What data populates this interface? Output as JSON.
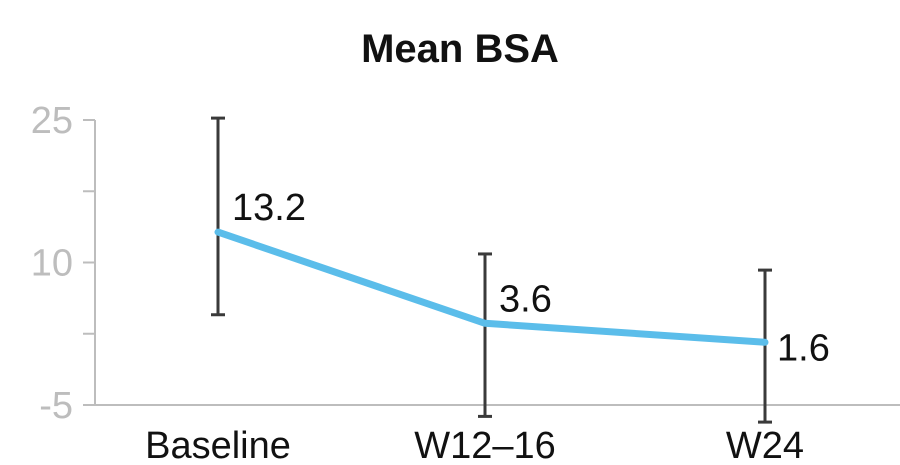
{
  "colors": {
    "series": "#5bbdea",
    "error_bar": "#3a3a3a",
    "axis": "#bdbdbd",
    "tick_text": "#bdbdbd",
    "text": "#111111"
  },
  "chart_data": {
    "type": "line",
    "title": "Mean BSA",
    "xlabel": "",
    "ylabel": "",
    "categories": [
      "Baseline",
      "W12–16",
      "W24"
    ],
    "ylim": [
      -5,
      25
    ],
    "yticks": [
      -5,
      2.5,
      10,
      17.5,
      25
    ],
    "ytick_labels": [
      "-5",
      "",
      "10",
      "",
      "25"
    ],
    "grid": false,
    "series": [
      {
        "values": [
          13.2,
          3.6,
          1.6
        ],
        "data_labels": [
          "13.2",
          "3.6",
          "1.6"
        ],
        "error_low": [
          4.5,
          -6.2,
          -6.8
        ],
        "error_high": [
          25.2,
          10.9,
          9.2
        ]
      }
    ]
  }
}
